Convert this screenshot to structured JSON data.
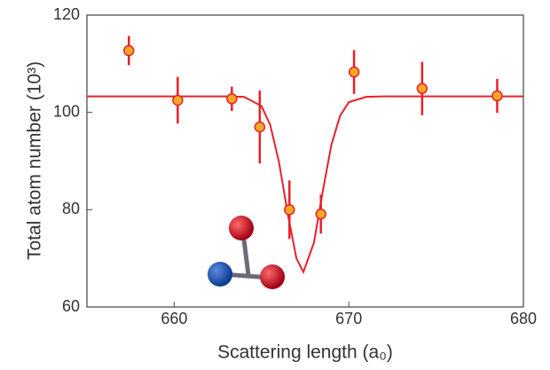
{
  "chart_data": {
    "type": "scatter",
    "x_label": "Scattering length (a₀)",
    "y_label": "Total atom number (10³)",
    "x": [
      657.4,
      660.2,
      663.3,
      664.9,
      666.6,
      668.4,
      670.3,
      674.2,
      678.5
    ],
    "values": [
      112.7,
      102.5,
      102.8,
      97.0,
      80.0,
      79.1,
      108.3,
      104.9,
      103.4
    ],
    "errors": [
      3.0,
      4.8,
      2.5,
      7.5,
      6.0,
      4.0,
      4.5,
      5.5,
      3.5
    ],
    "color": "#e8202a",
    "marker_fill": "#f7a823",
    "fit": {
      "type": "line",
      "color": "#e8202a",
      "x": [
        655,
        660,
        663,
        664,
        665,
        665.5,
        666,
        666.5,
        667,
        667.4,
        668,
        668.5,
        669,
        669.5,
        670,
        671,
        672,
        675,
        680
      ],
      "values": [
        103.3,
        103.3,
        103.3,
        103.2,
        101.3,
        97.4,
        89.8,
        79.2,
        70.0,
        67.2,
        73.2,
        83.6,
        93.3,
        99.3,
        102.1,
        103.2,
        103.3,
        103.3,
        103.3
      ]
    },
    "xlim": [
      655,
      680
    ],
    "xticks": [
      660,
      670,
      680
    ],
    "ylim": [
      60,
      120
    ],
    "yticks": [
      60,
      80,
      100,
      120
    ]
  }
}
